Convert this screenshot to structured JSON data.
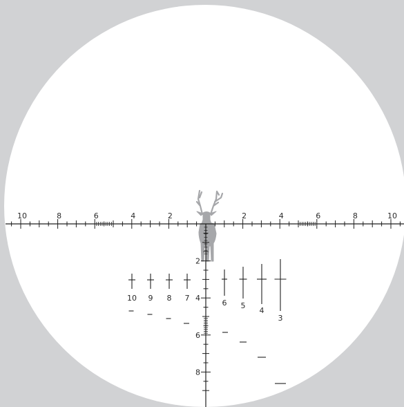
{
  "reticle": {
    "colors": {
      "background": "#d1d2d4",
      "lens": "#ffffff",
      "ink": "#1f1f1f",
      "deer": "#a6a7aa"
    },
    "icon": "deer-silhouette-icon",
    "horizontal_labels": {
      "left": [
        "10",
        "8",
        "6",
        "4",
        "2"
      ],
      "right": [
        "2",
        "4",
        "6",
        "8",
        "10"
      ]
    },
    "vertical_labels": [
      "2",
      "4",
      "6",
      "8"
    ],
    "holdover_left": [
      "10",
      "9",
      "8",
      "7"
    ],
    "holdover_right": [
      "6",
      "5",
      "4",
      "3"
    ]
  }
}
